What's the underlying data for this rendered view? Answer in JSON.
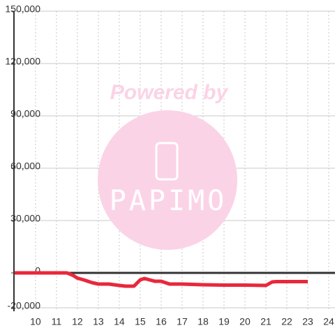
{
  "chart_data": {
    "type": "line",
    "x": [
      9,
      11.5,
      11.8,
      12,
      12.3,
      12.7,
      13,
      13.5,
      14,
      14.3,
      14.7,
      15,
      15.2,
      15.7,
      16,
      16.4,
      17,
      18,
      19,
      20,
      21,
      21.3,
      21.5,
      23
    ],
    "series": [
      {
        "color": "#e8283c",
        "values": [
          0,
          0,
          -1500,
          -3000,
          -4000,
          -5600,
          -6400,
          -6400,
          -7200,
          -7600,
          -7600,
          -4000,
          -3200,
          -4800,
          -4800,
          -6400,
          -6400,
          -6800,
          -7000,
          -7000,
          -7200,
          -5200,
          -5000,
          -5000
        ]
      }
    ],
    "xlim": [
      8.97,
      24.3
    ],
    "xticks": [
      10,
      11,
      12,
      13,
      14,
      15,
      16,
      17,
      18,
      19,
      20,
      21,
      22,
      23,
      24
    ],
    "ylim": [
      -22000,
      150000
    ],
    "yticks": [
      {
        "value": -20000,
        "label": "-20,000"
      },
      0,
      {
        "value": 30000,
        "label": "30,000"
      },
      {
        "value": 60000,
        "label": "60,000"
      },
      {
        "value": 90000,
        "label": "90,000"
      },
      {
        "value": 120000,
        "label": "120,000"
      },
      {
        "value": 150000,
        "label": "150,000"
      }
    ],
    "grid": true,
    "watermark": {
      "line1": "Powered by",
      "line2": "PAPIMO"
    }
  }
}
